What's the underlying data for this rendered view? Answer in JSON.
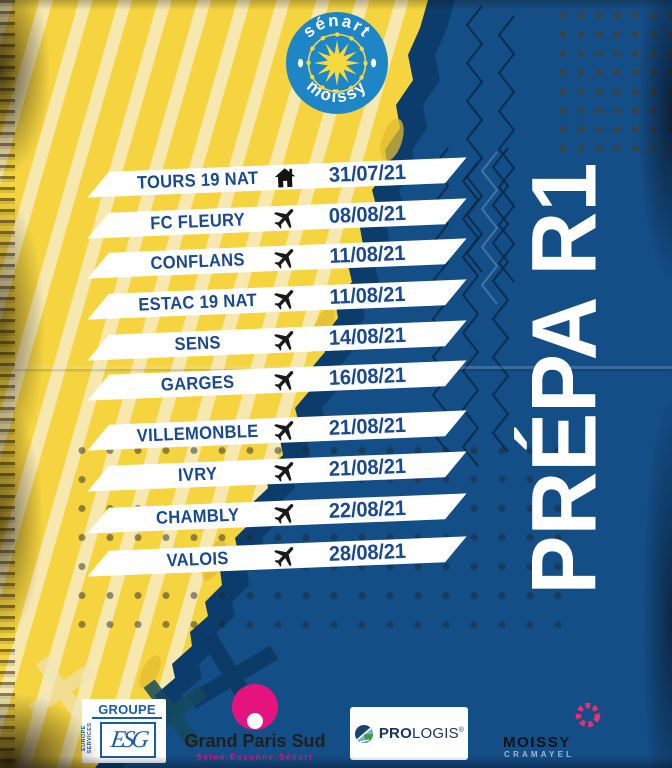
{
  "poster": {
    "club": {
      "name_top": "sénart",
      "name_bottom": "moissy"
    },
    "title": "PRÉPA R1",
    "fixtures": [
      {
        "team": "TOURS 19 NAT",
        "venue": "home",
        "date": "31/07/21"
      },
      {
        "team": "FC FLEURY",
        "venue": "away",
        "date": "08/08/21"
      },
      {
        "team": "CONFLANS",
        "venue": "away",
        "date": "11/08/21"
      },
      {
        "team": "ESTAC 19 NAT",
        "venue": "away",
        "date": "11/08/21"
      },
      {
        "team": "SENS",
        "venue": "away",
        "date": "14/08/21"
      },
      {
        "team": "GARGES",
        "venue": "away",
        "date": "16/08/21"
      },
      {
        "team": "VILLEMONBLE",
        "venue": "away",
        "date": "21/08/21"
      },
      {
        "team": "IVRY",
        "venue": "away",
        "date": "21/08/21"
      },
      {
        "team": "CHAMBLY",
        "venue": "away",
        "date": "22/08/21"
      },
      {
        "team": "VALOIS",
        "venue": "away",
        "date": "28/08/21"
      }
    ],
    "sponsors": {
      "esg": {
        "label_groupe": "GROUPE",
        "label_vertical": "EUROPE SERVICES",
        "monogram": "ESG"
      },
      "grand_paris_sud": {
        "name": "Grand Paris Sud",
        "tagline": "Seine-Essonne-Sénart"
      },
      "prologis": {
        "name_bold": "PRO",
        "name_regular": "LOGIS",
        "reg_mark": "®"
      },
      "moissy_cramayel": {
        "name": "MOISSY",
        "sub": "CRAMAYEL"
      }
    },
    "colors": {
      "yellow": "#F5D440",
      "stripe_cream": "#F7EDCA",
      "blue": "#144E86",
      "tear_dark_blue": "#0B3C6B",
      "navy_text": "#1B4A8C",
      "banner_white": "#FFFFFF",
      "icon_black": "#121212",
      "gps_pink": "#E5137D",
      "moissy_pink": "#E53170",
      "prologis_navy": "#16365F",
      "esg_blue": "#1D5CA5",
      "title_white": "#FFFFFF"
    }
  }
}
